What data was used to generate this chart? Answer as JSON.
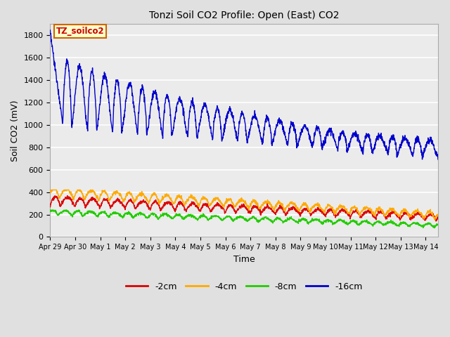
{
  "title": "Tonzi Soil CO2 Profile: Open (East) CO2",
  "xlabel": "Time",
  "ylabel": "Soil CO2 (mV)",
  "ylim": [
    0,
    1900
  ],
  "yticks": [
    0,
    200,
    400,
    600,
    800,
    1000,
    1200,
    1400,
    1600,
    1800
  ],
  "xtick_labels": [
    "Apr 29",
    "Apr 30",
    "May 1",
    "May 2",
    "May 3",
    "May 4",
    "May 5",
    "May 6",
    "May 7",
    "May 8",
    "May 9",
    "May 10",
    "May 11",
    "May 12",
    "May 13",
    "May 14"
  ],
  "xtick_positions": [
    0,
    1,
    2,
    3,
    4,
    5,
    6,
    7,
    8,
    9,
    10,
    11,
    12,
    13,
    14,
    15
  ],
  "bg_color": "#e0e0e0",
  "plot_bg_color": "#ebebeb",
  "grid_color": "#ffffff",
  "legend_label": "TZ_soilco2",
  "legend_bg": "#ffffcc",
  "legend_border": "#cc6600",
  "series_colors": {
    "neg2cm": "#dd0000",
    "neg4cm": "#ffaa00",
    "neg8cm": "#22cc00",
    "neg16cm": "#0000cc"
  },
  "series_labels": [
    "-2cm",
    "-4cm",
    "-8cm",
    "-16cm"
  ]
}
